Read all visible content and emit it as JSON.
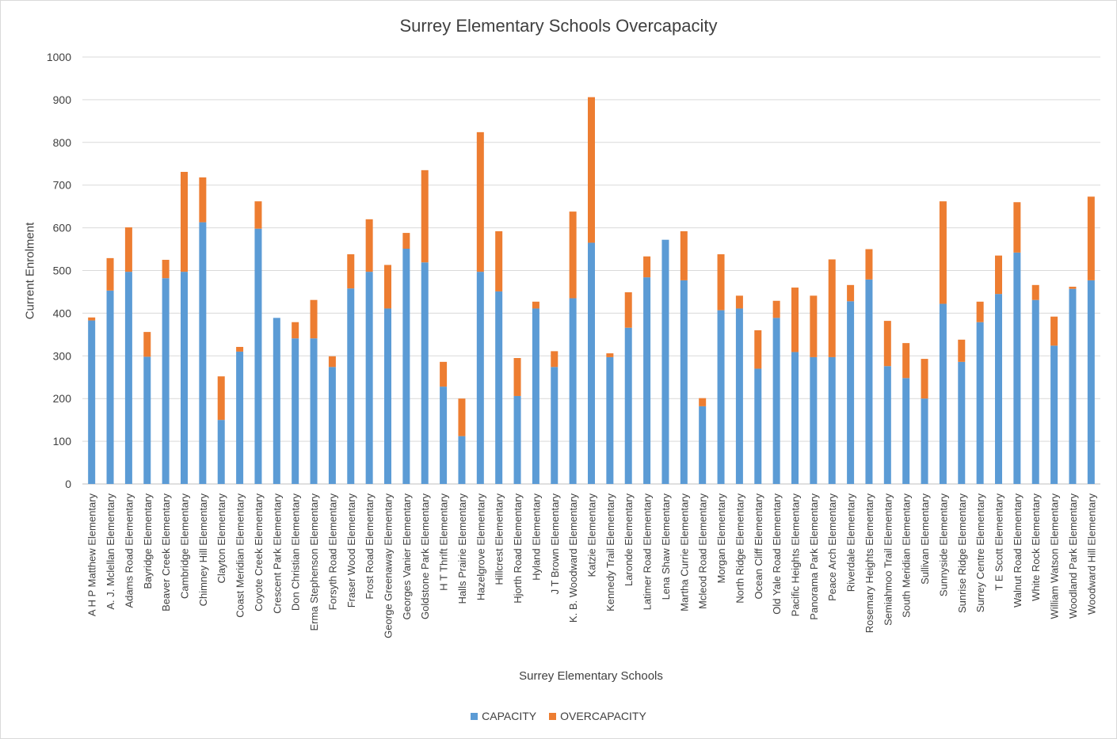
{
  "chart_data": {
    "type": "bar",
    "stacked": true,
    "title": "Surrey Elementary Schools Overcapacity",
    "xlabel": "Surrey Elementary Schools",
    "ylabel": "Current Enrolment",
    "ylim": [
      0,
      1000
    ],
    "yticks": [
      0,
      100,
      200,
      300,
      400,
      500,
      600,
      700,
      800,
      900,
      1000
    ],
    "grid": true,
    "legend_position": "bottom",
    "categories": [
      "A H P Matthew Elementary",
      "A. J. Mclellan Elementary",
      "Adams Road Elementary",
      "Bayridge Elementary",
      "Beaver Creek Elementary",
      "Cambridge Elementary",
      "Chimney Hill Elementary",
      "Clayton Elementary",
      "Coast Meridian Elementary",
      "Coyote Creek Elementary",
      "Crescent Park Elementary",
      "Don Christian Elementary",
      "Erma Stephenson Elementary",
      "Forsyth Road Elementary",
      "Fraser Wood Elementary",
      "Frost Road Elementary",
      "George Greenaway Elementary",
      "Georges Vanier Elementary",
      "Goldstone Park Elementary",
      "H T Thrift Elementary",
      "Halls Prairie Elementary",
      "Hazelgrove Elementary",
      "Hillcrest Elementary",
      "Hjorth Road Elementary",
      "Hyland Elementary",
      "J T Brown Elementary",
      "K. B. Woodward Elementary",
      "Katzie Elementary",
      "Kennedy Trail Elementary",
      "Laronde Elementary",
      "Latimer Road Elementary",
      "Lena Shaw Elementary",
      "Martha Currie Elementary",
      "Mcleod Road Elementary",
      "Morgan Elementary",
      "North Ridge Elementary",
      "Ocean Cliff Elementary",
      "Old Yale Road Elementary",
      "Pacific Heights Elementary",
      "Panorama Park Elementary",
      "Peace Arch Elementary",
      "Riverdale Elementary",
      "Rosemary Heights Elementary",
      "Semiahmoo Trail Elementary",
      "South Meridian Elementary",
      "Sullivan Elementary",
      "Sunnyside Elementary",
      "Sunrise Ridge Elementary",
      "Surrey Centre Elementary",
      "T E Scott Elementary",
      "Walnut Road Elementary",
      "White Rock Elementary",
      "William Watson Elementary",
      "Woodland Park Elementary",
      "Woodward Hill Elementary"
    ],
    "series": [
      {
        "name": "CAPACITY",
        "color": "#5b9bd5",
        "values": [
          383,
          453,
          497,
          298,
          482,
          497,
          613,
          150,
          310,
          598,
          389,
          341,
          341,
          274,
          458,
          497,
          411,
          551,
          519,
          228,
          112,
          497,
          451,
          206,
          411,
          274,
          435,
          565,
          297,
          366,
          484,
          572,
          477,
          182,
          407,
          411,
          270,
          389,
          309,
          297,
          297,
          428,
          479,
          276,
          248,
          200,
          422,
          286,
          379,
          445,
          542,
          431,
          324,
          457,
          477
        ]
      },
      {
        "name": "OVERCAPACITY",
        "color": "#ed7d31",
        "values": [
          7,
          76,
          104,
          58,
          43,
          234,
          105,
          102,
          11,
          64,
          0,
          38,
          90,
          25,
          80,
          123,
          102,
          37,
          216,
          58,
          88,
          327,
          141,
          89,
          16,
          37,
          203,
          341,
          9,
          83,
          49,
          0,
          115,
          19,
          131,
          30,
          90,
          40,
          151,
          144,
          229,
          38,
          71,
          106,
          82,
          93,
          240,
          52,
          48,
          90,
          118,
          35,
          68,
          5,
          196
        ]
      }
    ]
  }
}
